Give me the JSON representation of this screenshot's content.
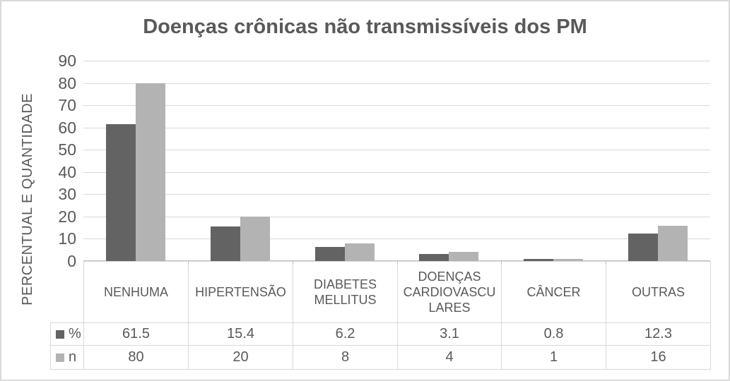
{
  "window": {
    "background": "#ffffff",
    "border_color": "#d9d9d9"
  },
  "chart": {
    "title": "Doenças crônicas não transmissíveis dos PM",
    "y_axis_label": "PERCENTUAL E QUANTIDADE"
  },
  "chart_data": {
    "type": "bar",
    "title": "Doenças crônicas não transmissíveis dos PM",
    "xlabel": "",
    "ylabel": "PERCENTUAL E QUANTIDADE",
    "categories": [
      "NENHUMA",
      "HIPERTENSÃO",
      "DIABETES\nMELLITUS",
      "DOENÇAS\nCARDIOVASCU\nLARES",
      "CÂNCER",
      "OUTRAS"
    ],
    "series": [
      {
        "name": "%",
        "color": "#636363",
        "values": [
          61.5,
          15.4,
          6.2,
          3.1,
          0.8,
          12.3
        ]
      },
      {
        "name": "n",
        "color": "#b3b3b3",
        "values": [
          80,
          20,
          8,
          4,
          1,
          16
        ]
      }
    ],
    "ylim": [
      0,
      90
    ],
    "ytick_step": 10,
    "grid": true,
    "legend_position": "data-table-left",
    "gridline_color": "#d9d9d9",
    "axis_line_color": "#bfbfbf",
    "text_color": "#595959"
  }
}
